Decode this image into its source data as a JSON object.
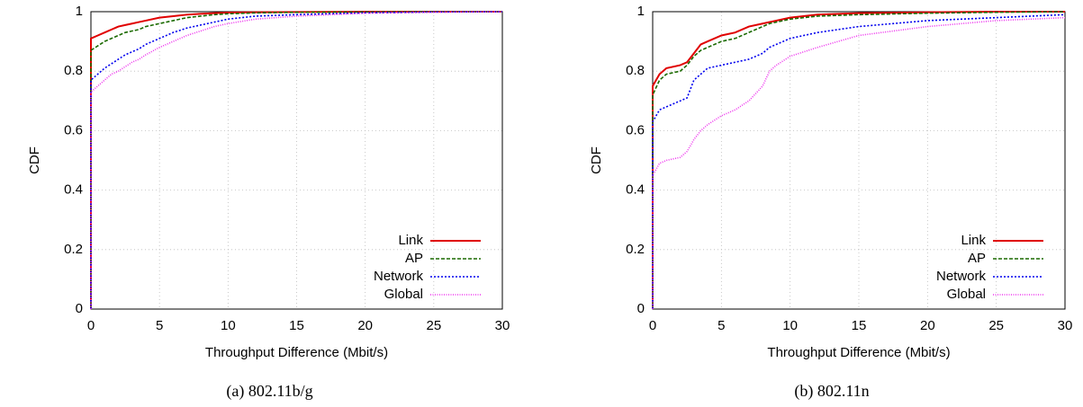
{
  "chart_data": [
    {
      "type": "line",
      "caption": "(a)  802.11b/g",
      "xlabel": "Throughput Difference (Mbit/s)",
      "ylabel": "CDF",
      "x": [
        0,
        0,
        0.5,
        1,
        1.5,
        2,
        2.5,
        3,
        3.5,
        4,
        5,
        6,
        7,
        8,
        9,
        10,
        12,
        15,
        20,
        25,
        30
      ],
      "series": [
        {
          "name": "Link",
          "color": "#e00000",
          "values": [
            0,
            0.91,
            0.92,
            0.93,
            0.94,
            0.95,
            0.955,
            0.96,
            0.965,
            0.97,
            0.98,
            0.985,
            0.99,
            0.993,
            0.995,
            0.997,
            0.998,
            0.999,
            1,
            1,
            1
          ]
        },
        {
          "name": "AP",
          "color": "#1a6a00",
          "values": [
            0,
            0.87,
            0.885,
            0.9,
            0.91,
            0.92,
            0.93,
            0.935,
            0.94,
            0.95,
            0.96,
            0.97,
            0.98,
            0.985,
            0.99,
            0.993,
            0.996,
            0.998,
            0.999,
            1,
            1
          ]
        },
        {
          "name": "Network",
          "color": "#0000ee",
          "values": [
            0,
            0.77,
            0.79,
            0.81,
            0.825,
            0.84,
            0.855,
            0.865,
            0.875,
            0.89,
            0.91,
            0.93,
            0.945,
            0.955,
            0.965,
            0.975,
            0.985,
            0.99,
            0.996,
            0.999,
            1
          ]
        },
        {
          "name": "Global",
          "color": "#ee33ee",
          "values": [
            0,
            0.73,
            0.75,
            0.77,
            0.79,
            0.8,
            0.815,
            0.83,
            0.84,
            0.855,
            0.88,
            0.9,
            0.92,
            0.935,
            0.95,
            0.96,
            0.975,
            0.985,
            0.995,
            0.998,
            1
          ]
        }
      ],
      "xlim": [
        0,
        30
      ],
      "xticks": [
        0,
        5,
        10,
        15,
        20,
        25,
        30
      ],
      "ylim": [
        0,
        1
      ],
      "yticks": [
        0,
        0.2,
        0.4,
        0.6,
        0.8,
        1
      ],
      "grid": true,
      "legend": "lower right"
    },
    {
      "type": "line",
      "caption": "(b)  802.11n",
      "xlabel": "Throughput Difference (Mbit/s)",
      "ylabel": "CDF",
      "x": [
        0,
        0,
        0.5,
        1,
        2,
        2.5,
        3,
        3.5,
        4,
        5,
        6,
        7,
        8,
        8.5,
        9,
        10,
        12,
        15,
        20,
        25,
        30
      ],
      "series": [
        {
          "name": "Link",
          "color": "#e00000",
          "values": [
            0,
            0.75,
            0.79,
            0.81,
            0.82,
            0.83,
            0.86,
            0.89,
            0.9,
            0.92,
            0.93,
            0.95,
            0.96,
            0.965,
            0.97,
            0.98,
            0.99,
            0.995,
            0.998,
            1,
            1
          ]
        },
        {
          "name": "AP",
          "color": "#1a6a00",
          "values": [
            0,
            0.72,
            0.77,
            0.79,
            0.8,
            0.82,
            0.85,
            0.87,
            0.88,
            0.9,
            0.91,
            0.93,
            0.95,
            0.96,
            0.965,
            0.975,
            0.985,
            0.99,
            0.995,
            0.998,
            1
          ]
        },
        {
          "name": "Network",
          "color": "#0000ee",
          "values": [
            0,
            0.63,
            0.67,
            0.68,
            0.7,
            0.71,
            0.77,
            0.79,
            0.81,
            0.82,
            0.83,
            0.84,
            0.86,
            0.88,
            0.89,
            0.91,
            0.93,
            0.95,
            0.97,
            0.98,
            0.99
          ]
        },
        {
          "name": "Global",
          "color": "#ee33ee",
          "values": [
            0,
            0.45,
            0.49,
            0.5,
            0.51,
            0.53,
            0.57,
            0.6,
            0.62,
            0.65,
            0.67,
            0.7,
            0.75,
            0.8,
            0.82,
            0.85,
            0.88,
            0.92,
            0.95,
            0.97,
            0.98
          ]
        }
      ],
      "xlim": [
        0,
        30
      ],
      "xticks": [
        0,
        5,
        10,
        15,
        20,
        25,
        30
      ],
      "ylim": [
        0,
        1
      ],
      "yticks": [
        0,
        0.2,
        0.4,
        0.6,
        0.8,
        1
      ],
      "grid": true,
      "legend": "lower right"
    }
  ]
}
